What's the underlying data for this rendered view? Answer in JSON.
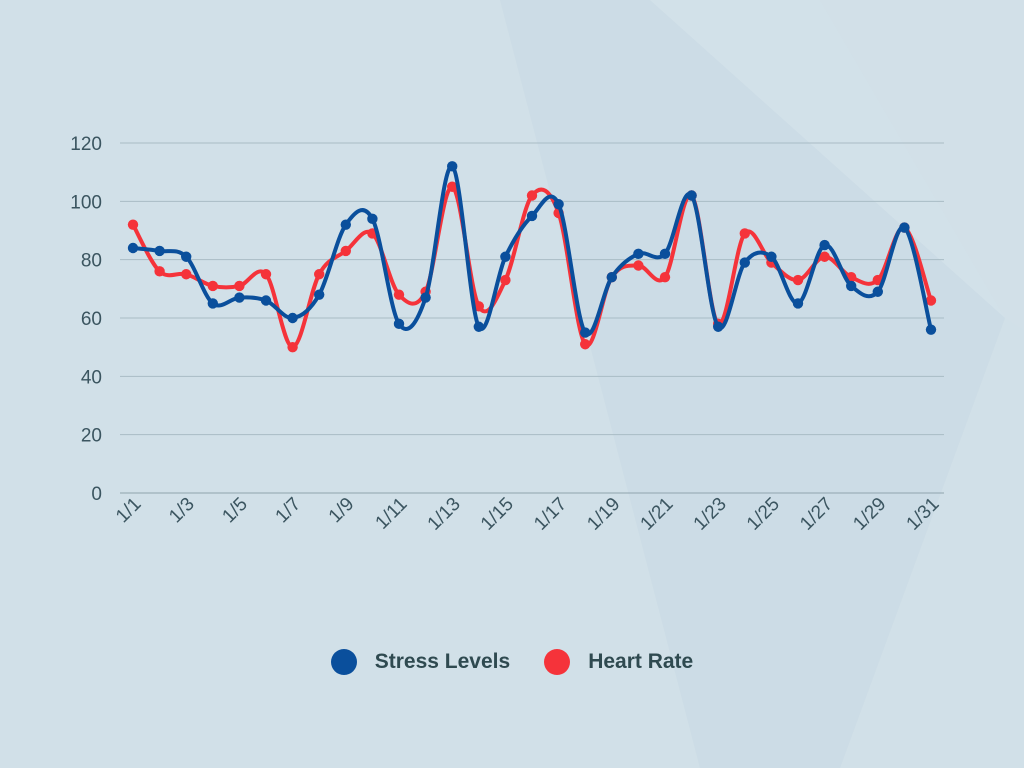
{
  "chart_data": {
    "type": "line",
    "categories": [
      "1/1",
      "1/2",
      "1/3",
      "1/4",
      "1/5",
      "1/6",
      "1/7",
      "1/8",
      "1/9",
      "1/10",
      "1/11",
      "1/12",
      "1/13",
      "1/14",
      "1/15",
      "1/16",
      "1/17",
      "1/18",
      "1/19",
      "1/20",
      "1/21",
      "1/22",
      "1/23",
      "1/24",
      "1/25",
      "1/26",
      "1/27",
      "1/28",
      "1/29",
      "1/30",
      "1/31"
    ],
    "tick_labels": [
      "1/1",
      "1/3",
      "1/5",
      "1/7",
      "1/9",
      "1/11",
      "1/13",
      "1/15",
      "1/17",
      "1/19",
      "1/21",
      "1/23",
      "1/25",
      "1/27",
      "1/29",
      "1/31"
    ],
    "y_ticks": [
      "0",
      "20",
      "40",
      "60",
      "80",
      "100",
      "120"
    ],
    "ylim": [
      0,
      120
    ],
    "grid": true,
    "legend_position": "bottom",
    "series": [
      {
        "name": "Stress Levels",
        "color": "#0a4f9c",
        "values": [
          84,
          83,
          81,
          65,
          67,
          66,
          60,
          68,
          92,
          94,
          58,
          67,
          112,
          57,
          81,
          95,
          99,
          55,
          74,
          82,
          82,
          102,
          57,
          79,
          81,
          65,
          85,
          71,
          69,
          91,
          56
        ]
      },
      {
        "name": "Heart Rate",
        "color": "#f5333a",
        "values": [
          92,
          76,
          75,
          71,
          71,
          75,
          50,
          75,
          83,
          89,
          68,
          69,
          105,
          64,
          73,
          102,
          96,
          51,
          74,
          78,
          74,
          102,
          58,
          89,
          79,
          73,
          81,
          74,
          73,
          91,
          66
        ]
      }
    ]
  }
}
